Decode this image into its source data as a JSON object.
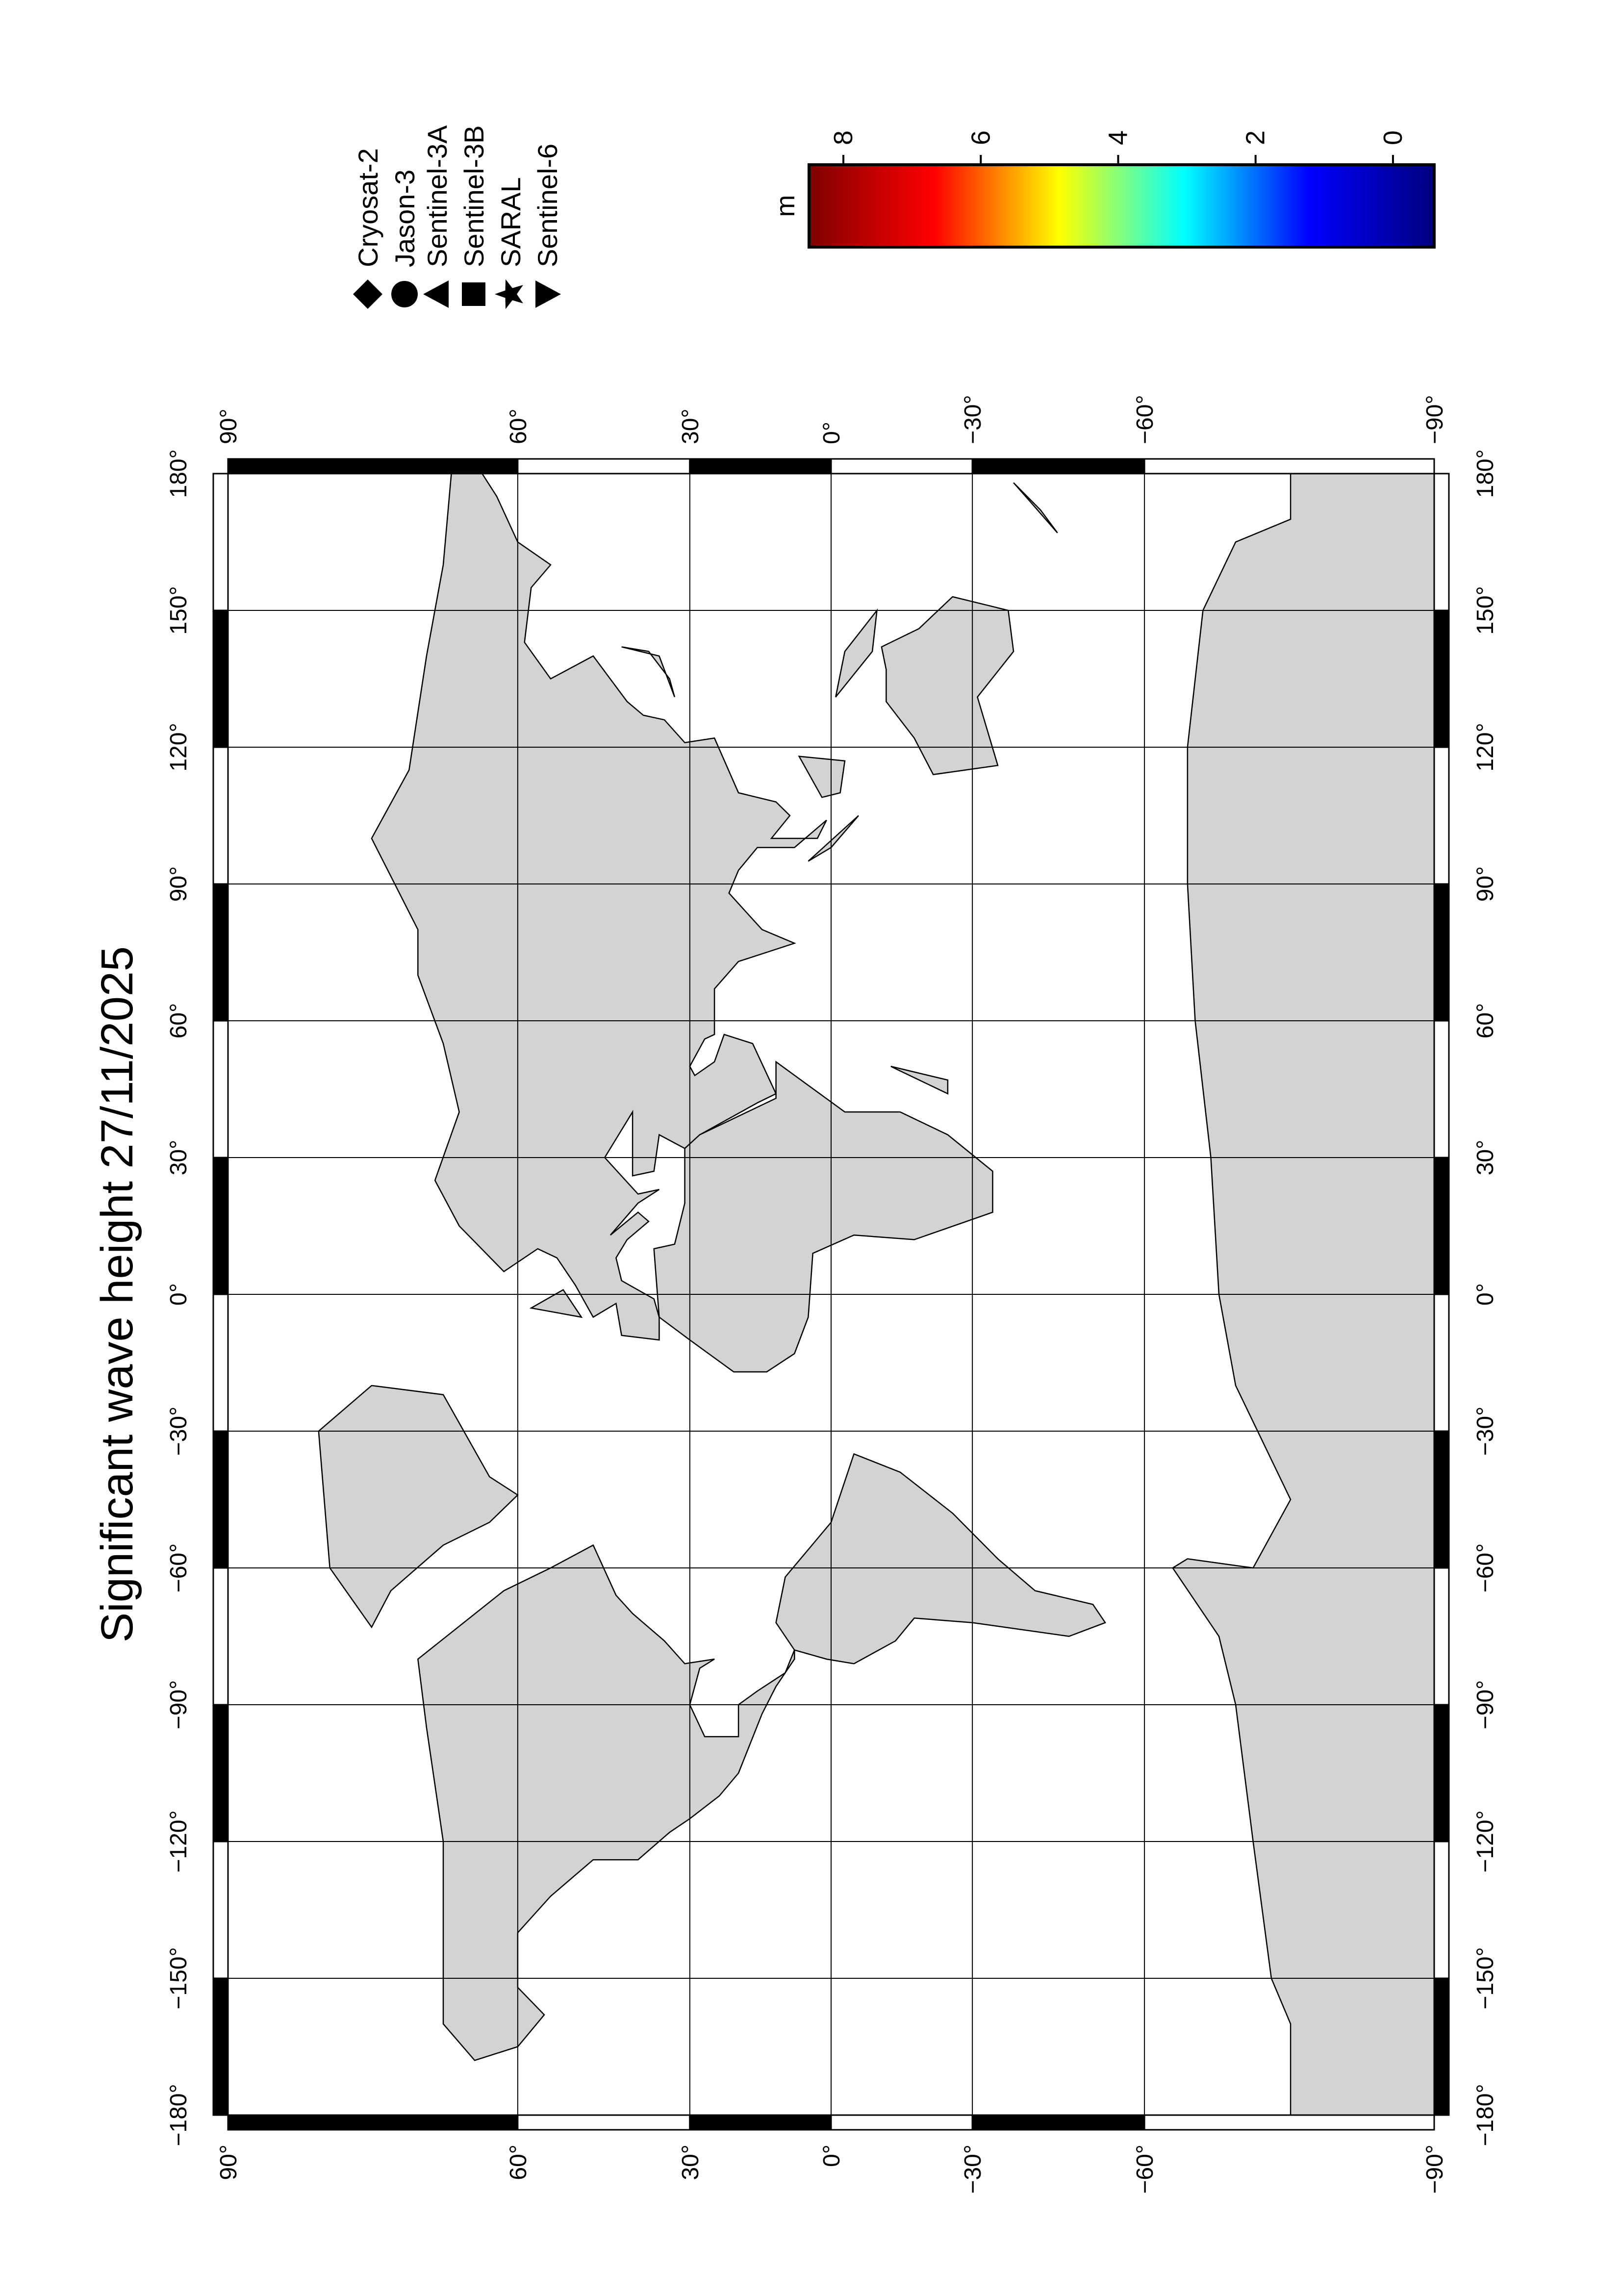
{
  "title": "Significant wave height 27/11/2025",
  "map": {
    "projection": "miller",
    "xlim": [
      -180,
      180
    ],
    "ylim": [
      -90,
      90
    ],
    "xticks": [
      {
        "value": -180,
        "label": "−180°"
      },
      {
        "value": -150,
        "label": "−150°"
      },
      {
        "value": -120,
        "label": "−120°"
      },
      {
        "value": -90,
        "label": "−90°"
      },
      {
        "value": -60,
        "label": "−60°"
      },
      {
        "value": -30,
        "label": "−30°"
      },
      {
        "value": 0,
        "label": "0°"
      },
      {
        "value": 30,
        "label": "30°"
      },
      {
        "value": 60,
        "label": "60°"
      },
      {
        "value": 90,
        "label": "90°"
      },
      {
        "value": 120,
        "label": "120°"
      },
      {
        "value": 150,
        "label": "150°"
      },
      {
        "value": 180,
        "label": "180°"
      }
    ],
    "yticks": [
      {
        "value": 90,
        "label": "90°"
      },
      {
        "value": 60,
        "label": "60°"
      },
      {
        "value": 30,
        "label": "30°"
      },
      {
        "value": 0,
        "label": "0°"
      },
      {
        "value": -30,
        "label": "−30°"
      },
      {
        "value": -60,
        "label": "−60°"
      },
      {
        "value": -90,
        "label": "−90°"
      }
    ],
    "grid": true
  },
  "legend": {
    "items": [
      "Cryosat-2",
      "Jason-3",
      "Sentinel-3A",
      "Sentinel-3B",
      "SARAL",
      "Sentinel-6"
    ]
  },
  "colorbar": {
    "label": "m",
    "range": [
      -0.6,
      8.5
    ],
    "colors": [
      "#000080",
      "#0000ff",
      "#00ffff",
      "#ffff00",
      "#ff0000",
      "#800000"
    ],
    "ticks": [
      0,
      2,
      4,
      6,
      8
    ]
  }
}
